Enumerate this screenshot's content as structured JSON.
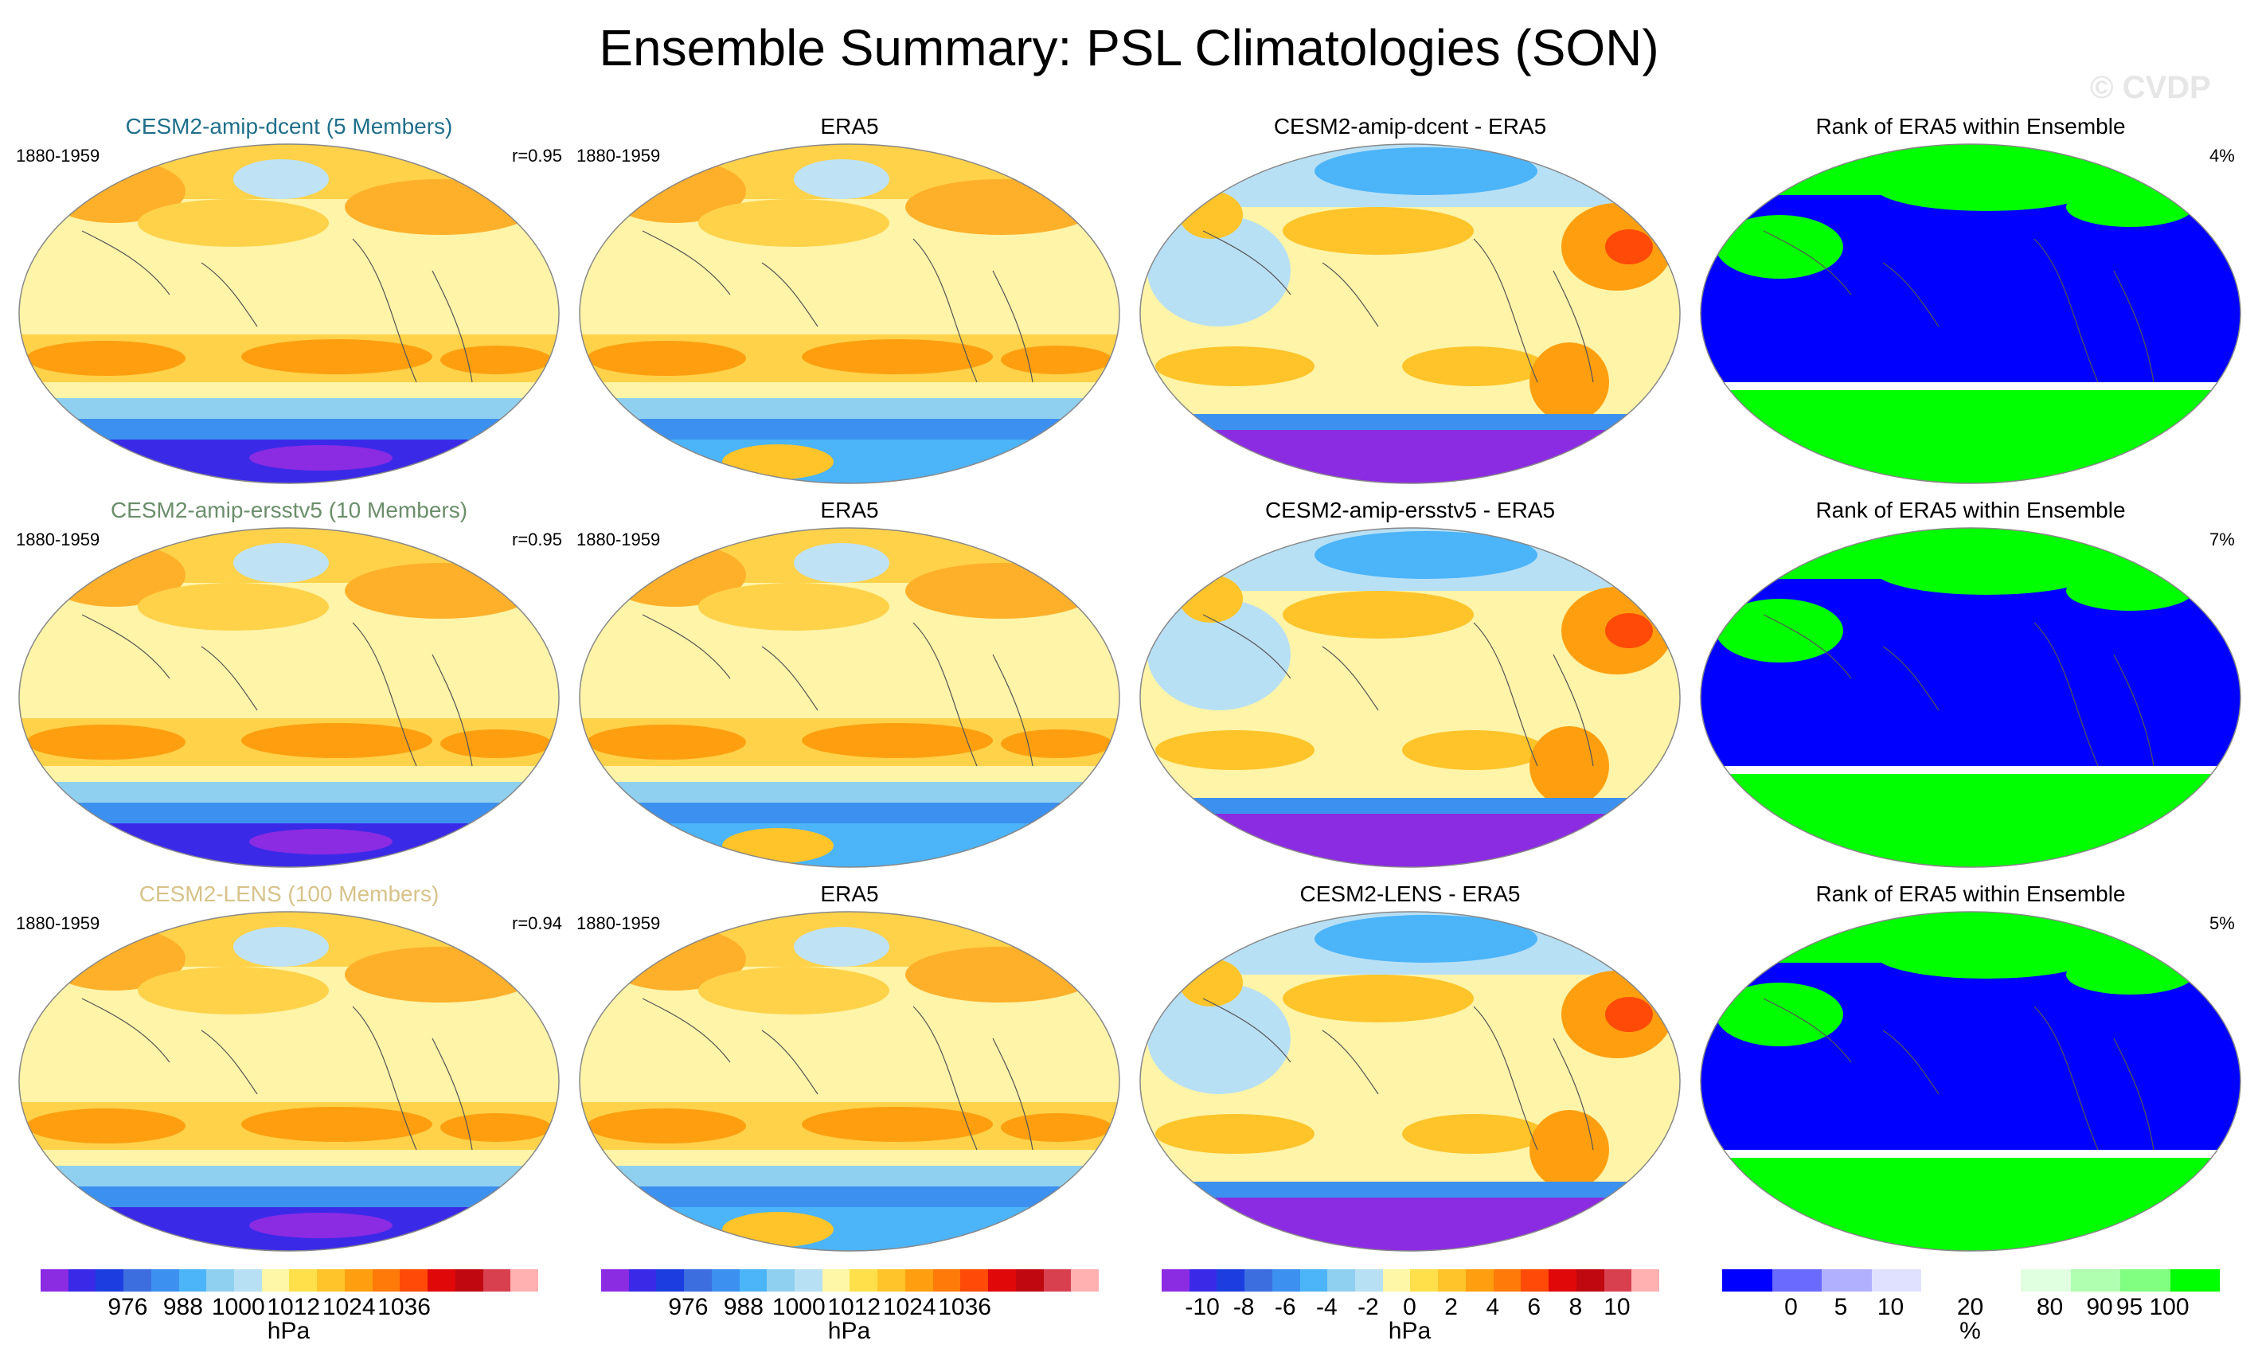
{
  "title": "Ensemble Summary: PSL Climatologies (SON)",
  "watermark": "© CVDP",
  "rows": [
    {
      "model": {
        "title": "CESM2-amip-dcent (5 Members)",
        "title_color": "#1f6f8b",
        "period": "1880-1959",
        "corr": "r=0.95"
      },
      "obs": {
        "title": "ERA5",
        "period": "1880-1959"
      },
      "diff": {
        "title": "CESM2-amip-dcent - ERA5"
      },
      "rank": {
        "title": "Rank of ERA5 within Ensemble",
        "pct": "4%"
      }
    },
    {
      "model": {
        "title": "CESM2-amip-ersstv5 (10 Members)",
        "title_color": "#6b8e6b",
        "period": "1880-1959",
        "corr": "r=0.95"
      },
      "obs": {
        "title": "ERA5",
        "period": "1880-1959"
      },
      "diff": {
        "title": "CESM2-amip-ersstv5 - ERA5"
      },
      "rank": {
        "title": "Rank of ERA5 within Ensemble",
        "pct": "7%"
      }
    },
    {
      "model": {
        "title": "CESM2-LENS (100 Members)",
        "title_color": "#d7c38a",
        "period": "1880-1959",
        "corr": "r=0.94"
      },
      "obs": {
        "title": "ERA5",
        "period": "1880-1959"
      },
      "diff": {
        "title": "CESM2-LENS - ERA5"
      },
      "rank": {
        "title": "Rank of ERA5 within Ensemble",
        "pct": "5%"
      }
    }
  ],
  "colorbars": [
    {
      "unit": "hPa",
      "ticks": [
        "976",
        "988",
        "1000",
        "1012",
        "1024",
        "1036"
      ],
      "colors": [
        "#8b2be2",
        "#3a2ae8",
        "#1c3ee0",
        "#3c6ee0",
        "#3c90f0",
        "#4cb4f8",
        "#8fd0f0",
        "#b8e0f5",
        "#fff7a8",
        "#ffe04a",
        "#ffc42a",
        "#ff9f10",
        "#ff7a08",
        "#ff4a08",
        "#e00808",
        "#c00810",
        "#d84050",
        "#ffb0b0"
      ]
    },
    {
      "unit": "hPa",
      "ticks": [
        "976",
        "988",
        "1000",
        "1012",
        "1024",
        "1036"
      ],
      "colors": [
        "#8b2be2",
        "#3a2ae8",
        "#1c3ee0",
        "#3c6ee0",
        "#3c90f0",
        "#4cb4f8",
        "#8fd0f0",
        "#b8e0f5",
        "#fff7a8",
        "#ffe04a",
        "#ffc42a",
        "#ff9f10",
        "#ff7a08",
        "#ff4a08",
        "#e00808",
        "#c00810",
        "#d84050",
        "#ffb0b0"
      ]
    },
    {
      "unit": "hPa",
      "ticks": [
        "-10",
        "-8",
        "-6",
        "-4",
        "-2",
        "0",
        "2",
        "4",
        "6",
        "8",
        "10"
      ],
      "colors": [
        "#8b2be2",
        "#3a2ae8",
        "#1c3ee0",
        "#3c6ee0",
        "#3c90f0",
        "#4cb4f8",
        "#8fd0f0",
        "#b8e0f5",
        "#fff7a8",
        "#ffe04a",
        "#ffc42a",
        "#ff9f10",
        "#ff7a08",
        "#ff4a08",
        "#e00808",
        "#c00810",
        "#d84050",
        "#ffb0b0"
      ]
    },
    {
      "unit": "%",
      "ticks": [
        "0",
        "5",
        "10",
        "20",
        "80",
        "90",
        "95",
        "100"
      ],
      "colors": [
        "#0000ff",
        "#6a6aff",
        "#b0b0ff",
        "#e0e0ff",
        "#ffffff",
        "#ffffff",
        "#e0ffe0",
        "#b0ffb0",
        "#80ff80",
        "#00ff00"
      ]
    }
  ]
}
